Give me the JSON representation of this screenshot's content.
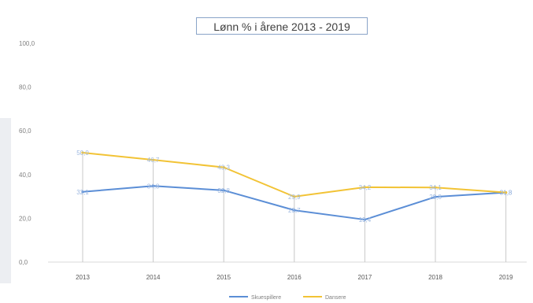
{
  "chart_data": {
    "type": "line",
    "title": "Lønn % i årene 2013 - 2019",
    "categories": [
      "2013",
      "2014",
      "2015",
      "2016",
      "2017",
      "2018",
      "2019"
    ],
    "ylim": [
      0,
      100
    ],
    "yticks": [
      "0,0",
      "20,0",
      "40,0",
      "60,0",
      "80,0",
      "100,0"
    ],
    "ytick_values": [
      0,
      20,
      40,
      60,
      80,
      100
    ],
    "grid": false,
    "legend_position": "bottom",
    "series": [
      {
        "name": "Skuespillere",
        "color": "#5b8ed6",
        "values": [
          32.1,
          34.8,
          32.8,
          23.7,
          19.4,
          29.8,
          31.8
        ],
        "labels": [
          "32,1",
          "34,8",
          "32,8",
          "23,7",
          "19,4",
          "29,8",
          "31,8"
        ]
      },
      {
        "name": "Dansere",
        "color": "#f2c335",
        "values": [
          50.0,
          46.7,
          43.3,
          29.9,
          34.2,
          34.1,
          31.8
        ],
        "labels": [
          "50,0",
          "46,7",
          "43,3",
          "29,9",
          "34,2",
          "34,1",
          "31,8"
        ]
      }
    ]
  }
}
